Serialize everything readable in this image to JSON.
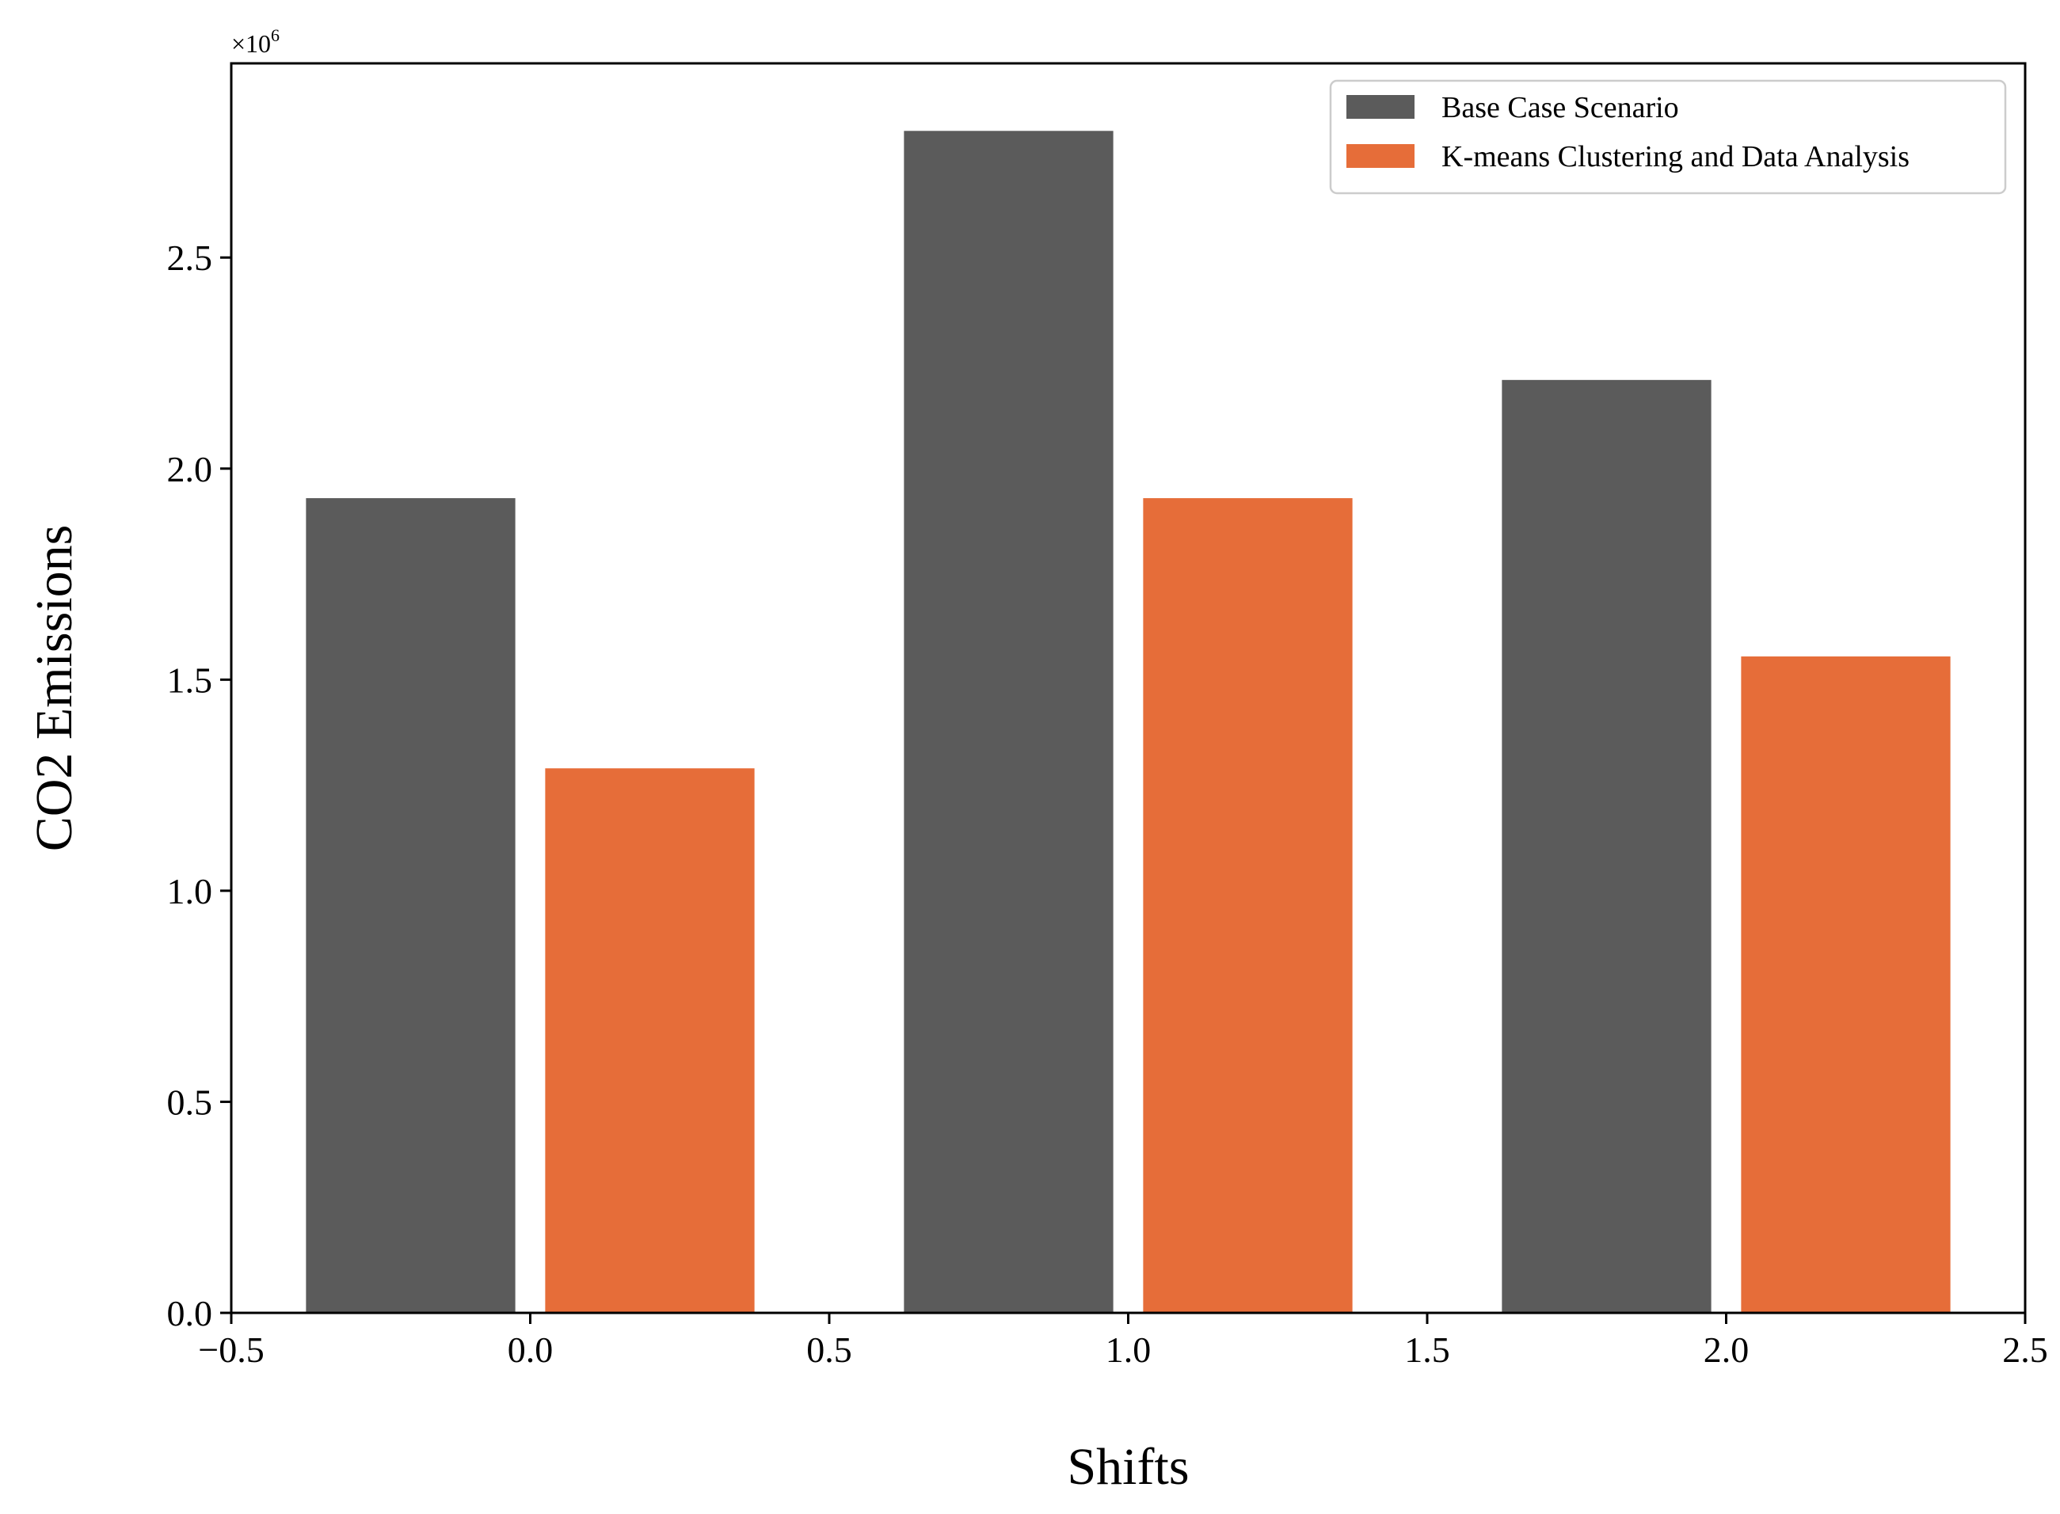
{
  "chart_data": {
    "type": "bar",
    "title": "",
    "xlabel": "Shifts",
    "ylabel": "CO2 Emissions",
    "y_offset_label": "×10",
    "y_offset_exponent": "6",
    "xlim": [
      -0.5,
      2.5
    ],
    "ylim": [
      0,
      2.96
    ],
    "x_ticks": [
      -0.5,
      0.0,
      0.5,
      1.0,
      1.5,
      2.0,
      2.5
    ],
    "x_tick_labels": [
      "−0.5",
      "0.0",
      "0.5",
      "1.0",
      "1.5",
      "2.0",
      "2.5"
    ],
    "y_ticks": [
      0.0,
      0.5,
      1.0,
      1.5,
      2.0,
      2.5
    ],
    "y_tick_labels": [
      "0.0",
      "0.5",
      "1.0",
      "1.5",
      "2.0",
      "2.5"
    ],
    "bar_width": 0.35,
    "grid": false,
    "legend_position": "top-right",
    "series": [
      {
        "name": "Base Case Scenario",
        "color": "#5b5b5b",
        "x": [
          -0.2,
          0.8,
          1.8
        ],
        "values": [
          1.93,
          2.8,
          2.21
        ]
      },
      {
        "name": "K-means Clustering and Data Analysis",
        "color": "#e66d39",
        "x": [
          0.2,
          1.2,
          2.2
        ],
        "values": [
          1.29,
          1.93,
          1.555
        ]
      }
    ]
  }
}
